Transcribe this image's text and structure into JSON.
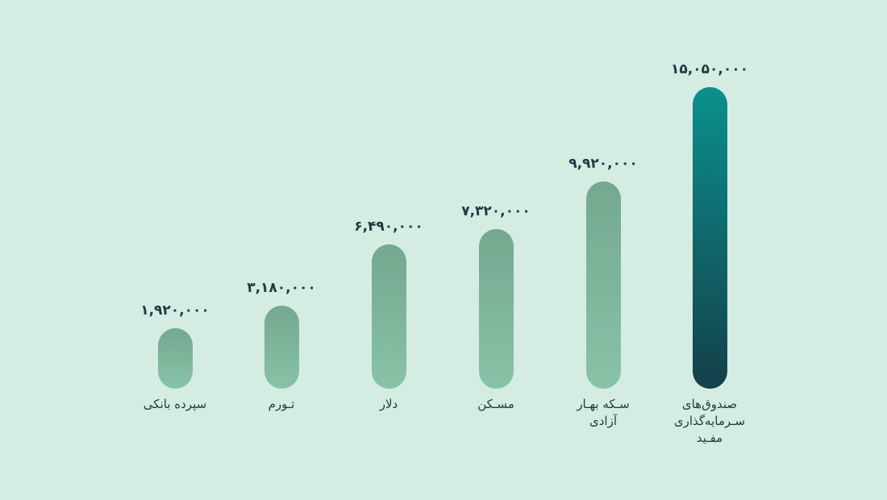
{
  "chart_data": {
    "type": "bar",
    "categories": [
      "سپرده بانکی",
      "تـورم",
      "دلار",
      "مسـکن",
      "سـکه بهـار آزادی",
      "صندوق‌های سـرمایه‌گذاری مفـید"
    ],
    "values": [
      1920000,
      3180000,
      6490000,
      7320000,
      9920000,
      15050000
    ],
    "value_labels": [
      "۱,۹۲۰,۰۰۰",
      "۳,۱۸۰,۰۰۰",
      "۶,۴۹۰,۰۰۰",
      "۷,۳۲۰,۰۰۰",
      "۹,۹۲۰,۰۰۰",
      "۱۵,۰۵۰,۰۰۰"
    ],
    "highlight_index": 5,
    "grid": false,
    "colors": {
      "background": "#d5ece3",
      "bar_top": "#74a88f",
      "bar_bottom": "#87c3a7",
      "highlight_top": "#0a908d",
      "highlight_bottom": "#14404a",
      "text": "#1f3a45"
    }
  }
}
